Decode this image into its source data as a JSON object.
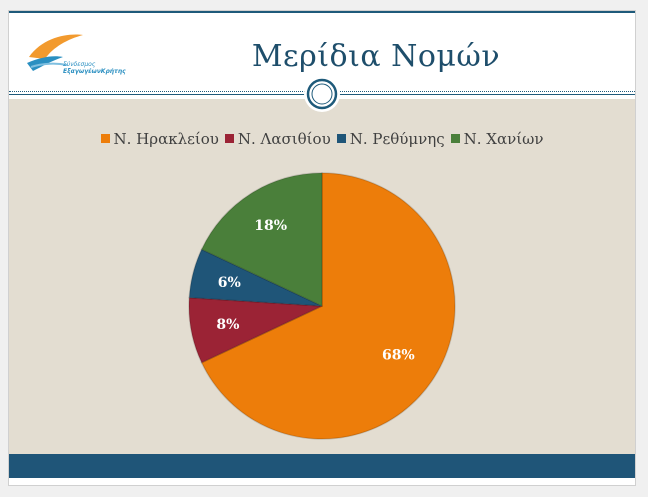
{
  "slide": {
    "title": "Μερίδια Νομών",
    "logo_text_line1": "Σύνδεσμος",
    "logo_text_line2": "ΕξαγωγέωνΚρήτης"
  },
  "colors": {
    "title": "#1e4e6b",
    "content_bg": "#e3ddd1",
    "footer": "#1f5578",
    "irakleio": "#ed7d0a",
    "lasithi": "#9b2335",
    "rethymno": "#1f5578",
    "chania": "#4a7f3a"
  },
  "chart_data": {
    "type": "pie",
    "title": "",
    "legend_position": "top",
    "categories": [
      "Ν. Ηρακλείου",
      "Ν. Λασιθίου",
      "Ν. Ρεθύμνης",
      "Ν. Χανίων"
    ],
    "values": [
      68,
      8,
      6,
      18
    ],
    "labels": [
      "68%",
      "8%",
      "6%",
      "18%"
    ],
    "colors": [
      "#ed7d0a",
      "#9b2335",
      "#1f5578",
      "#4a7f3a"
    ]
  }
}
